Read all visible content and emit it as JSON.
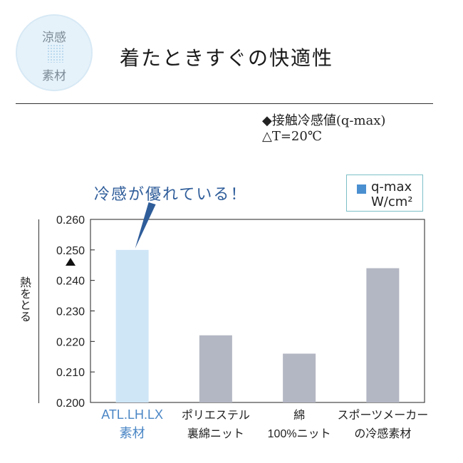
{
  "badge": {
    "line1": "涼感",
    "line2": "素材"
  },
  "headline": "着たときすぐの快適性",
  "notes": {
    "line1": "◆接触冷感値(q-max)",
    "line2": "△T=20℃"
  },
  "callout": "冷感が優れている！",
  "legend": {
    "name": "q-max",
    "unit": "W/cm²"
  },
  "colors": {
    "highlight_bar": "#cfe6f7",
    "other_bar": "#b3b6c3",
    "highlight_label": "#4a86c5",
    "legend_swatch": "#4a8fd0"
  },
  "chart_data": {
    "type": "bar",
    "categories": [
      "ATL.LH.LX\n素材",
      "ポリエステル\n裏綿ニット",
      "綿\n100%ニット",
      "スポーツメーカー\nの冷感素材"
    ],
    "values": [
      0.25,
      0.222,
      0.216,
      0.244
    ],
    "highlight_index": 0,
    "ylabel": "熱をとる",
    "ylim": [
      0.2,
      0.26
    ],
    "yticks": [
      "0.200",
      "0.210",
      "0.220",
      "0.230",
      "0.240",
      "0.250",
      "0.260"
    ],
    "grid": false,
    "legend_placement": "top-right"
  }
}
